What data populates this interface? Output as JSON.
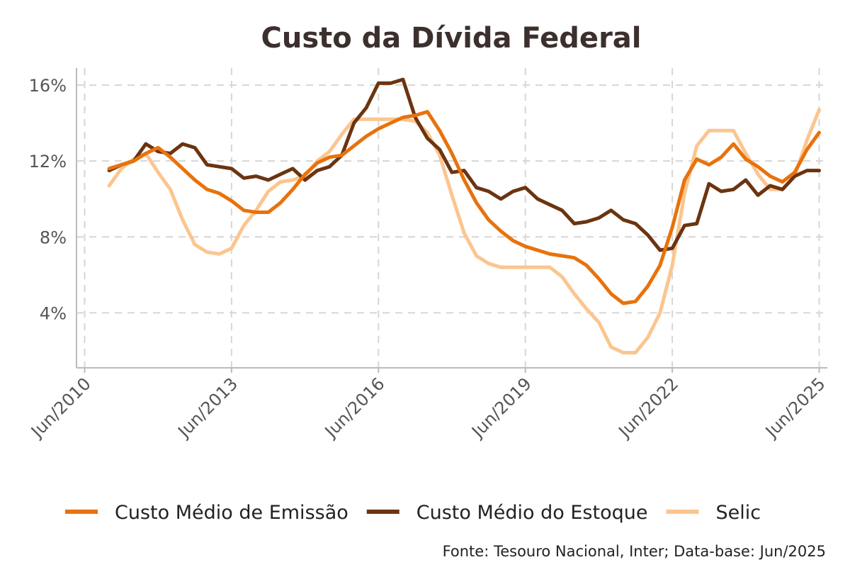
{
  "chart_data": {
    "type": "line",
    "title": "Custo da Dívida Federal",
    "xlabel": "",
    "ylabel": "",
    "x_ticks": [
      "Jun/2010",
      "Jun/2013",
      "Jun/2016",
      "Jun/2019",
      "Jun/2022",
      "Jun/2025"
    ],
    "y_ticks": [
      "4%",
      "8%",
      "12%",
      "16%"
    ],
    "y_tick_values": [
      4,
      8,
      12,
      16
    ],
    "ylim": [
      1.1,
      16.9
    ],
    "xlim": [
      "2010-04",
      "2025-08"
    ],
    "grid": true,
    "legend_position": "bottom",
    "series": [
      {
        "name": "Custo Médio de Emissão",
        "color": "#e8720c",
        "points": [
          [
            "2010-12",
            11.6
          ],
          [
            "2011-03",
            11.8
          ],
          [
            "2011-06",
            12.0
          ],
          [
            "2011-09",
            12.4
          ],
          [
            "2011-12",
            12.7
          ],
          [
            "2012-03",
            12.2
          ],
          [
            "2012-06",
            11.6
          ],
          [
            "2012-09",
            11.0
          ],
          [
            "2012-12",
            10.5
          ],
          [
            "2013-03",
            10.3
          ],
          [
            "2013-06",
            9.9
          ],
          [
            "2013-09",
            9.4
          ],
          [
            "2013-12",
            9.3
          ],
          [
            "2014-03",
            9.3
          ],
          [
            "2014-06",
            9.8
          ],
          [
            "2014-09",
            10.5
          ],
          [
            "2014-12",
            11.3
          ],
          [
            "2015-03",
            11.9
          ],
          [
            "2015-06",
            12.2
          ],
          [
            "2015-09",
            12.3
          ],
          [
            "2015-12",
            12.8
          ],
          [
            "2016-03",
            13.3
          ],
          [
            "2016-06",
            13.7
          ],
          [
            "2016-09",
            14.0
          ],
          [
            "2016-12",
            14.3
          ],
          [
            "2017-03",
            14.4
          ],
          [
            "2017-06",
            14.6
          ],
          [
            "2017-09",
            13.6
          ],
          [
            "2017-12",
            12.4
          ],
          [
            "2018-03",
            11.0
          ],
          [
            "2018-06",
            9.8
          ],
          [
            "2018-09",
            8.9
          ],
          [
            "2018-12",
            8.3
          ],
          [
            "2019-03",
            7.8
          ],
          [
            "2019-06",
            7.5
          ],
          [
            "2019-09",
            7.3
          ],
          [
            "2019-12",
            7.1
          ],
          [
            "2020-03",
            7.0
          ],
          [
            "2020-06",
            6.9
          ],
          [
            "2020-09",
            6.5
          ],
          [
            "2020-12",
            5.8
          ],
          [
            "2021-03",
            5.0
          ],
          [
            "2021-06",
            4.5
          ],
          [
            "2021-09",
            4.6
          ],
          [
            "2021-12",
            5.4
          ],
          [
            "2022-03",
            6.5
          ],
          [
            "2022-06",
            8.5
          ],
          [
            "2022-09",
            11.0
          ],
          [
            "2022-12",
            12.1
          ],
          [
            "2023-03",
            11.8
          ],
          [
            "2023-06",
            12.2
          ],
          [
            "2023-09",
            12.9
          ],
          [
            "2023-12",
            12.1
          ],
          [
            "2024-03",
            11.7
          ],
          [
            "2024-06",
            11.2
          ],
          [
            "2024-09",
            10.9
          ],
          [
            "2024-12",
            11.4
          ],
          [
            "2025-03",
            12.6
          ],
          [
            "2025-06",
            13.5
          ]
        ]
      },
      {
        "name": "Custo Médio do Estoque",
        "color": "#6b3410",
        "points": [
          [
            "2010-12",
            11.5
          ],
          [
            "2011-03",
            11.8
          ],
          [
            "2011-06",
            12.0
          ],
          [
            "2011-09",
            12.9
          ],
          [
            "2011-12",
            12.5
          ],
          [
            "2012-03",
            12.4
          ],
          [
            "2012-06",
            12.9
          ],
          [
            "2012-09",
            12.7
          ],
          [
            "2012-12",
            11.8
          ],
          [
            "2013-03",
            11.7
          ],
          [
            "2013-06",
            11.6
          ],
          [
            "2013-09",
            11.1
          ],
          [
            "2013-12",
            11.2
          ],
          [
            "2014-03",
            11.0
          ],
          [
            "2014-06",
            11.3
          ],
          [
            "2014-09",
            11.6
          ],
          [
            "2014-12",
            11.0
          ],
          [
            "2015-03",
            11.5
          ],
          [
            "2015-06",
            11.7
          ],
          [
            "2015-09",
            12.3
          ],
          [
            "2015-12",
            14.0
          ],
          [
            "2016-03",
            14.8
          ],
          [
            "2016-06",
            16.1
          ],
          [
            "2016-09",
            16.1
          ],
          [
            "2016-12",
            16.3
          ],
          [
            "2017-03",
            14.3
          ],
          [
            "2017-06",
            13.2
          ],
          [
            "2017-09",
            12.6
          ],
          [
            "2017-12",
            11.4
          ],
          [
            "2018-03",
            11.5
          ],
          [
            "2018-06",
            10.6
          ],
          [
            "2018-09",
            10.4
          ],
          [
            "2018-12",
            10.0
          ],
          [
            "2019-03",
            10.4
          ],
          [
            "2019-06",
            10.6
          ],
          [
            "2019-09",
            10.0
          ],
          [
            "2019-12",
            9.7
          ],
          [
            "2020-03",
            9.4
          ],
          [
            "2020-06",
            8.7
          ],
          [
            "2020-09",
            8.8
          ],
          [
            "2020-12",
            9.0
          ],
          [
            "2021-03",
            9.4
          ],
          [
            "2021-06",
            8.9
          ],
          [
            "2021-09",
            8.7
          ],
          [
            "2021-12",
            8.1
          ],
          [
            "2022-03",
            7.3
          ],
          [
            "2022-06",
            7.4
          ],
          [
            "2022-09",
            8.6
          ],
          [
            "2022-12",
            8.7
          ],
          [
            "2023-03",
            10.8
          ],
          [
            "2023-06",
            10.4
          ],
          [
            "2023-09",
            10.5
          ],
          [
            "2023-12",
            11.0
          ],
          [
            "2024-03",
            10.2
          ],
          [
            "2024-06",
            10.7
          ],
          [
            "2024-09",
            10.5
          ],
          [
            "2024-12",
            11.2
          ],
          [
            "2025-03",
            11.5
          ],
          [
            "2025-06",
            11.5
          ]
        ]
      },
      {
        "name": "Selic",
        "color": "#fcc58f",
        "points": [
          [
            "2010-12",
            10.7
          ],
          [
            "2011-03",
            11.6
          ],
          [
            "2011-06",
            12.1
          ],
          [
            "2011-09",
            12.4
          ],
          [
            "2011-12",
            11.4
          ],
          [
            "2012-03",
            10.5
          ],
          [
            "2012-06",
            8.9
          ],
          [
            "2012-09",
            7.6
          ],
          [
            "2012-12",
            7.2
          ],
          [
            "2013-03",
            7.1
          ],
          [
            "2013-06",
            7.4
          ],
          [
            "2013-09",
            8.6
          ],
          [
            "2013-12",
            9.4
          ],
          [
            "2014-03",
            10.4
          ],
          [
            "2014-06",
            10.9
          ],
          [
            "2014-09",
            11.0
          ],
          [
            "2014-12",
            11.2
          ],
          [
            "2015-03",
            12.0
          ],
          [
            "2015-06",
            12.5
          ],
          [
            "2015-09",
            13.4
          ],
          [
            "2015-12",
            14.2
          ],
          [
            "2016-03",
            14.2
          ],
          [
            "2016-06",
            14.2
          ],
          [
            "2016-09",
            14.2
          ],
          [
            "2016-12",
            14.2
          ],
          [
            "2017-03",
            14.1
          ],
          [
            "2017-06",
            13.5
          ],
          [
            "2017-09",
            12.3
          ],
          [
            "2017-12",
            10.2
          ],
          [
            "2018-03",
            8.2
          ],
          [
            "2018-06",
            7.0
          ],
          [
            "2018-09",
            6.6
          ],
          [
            "2018-12",
            6.4
          ],
          [
            "2019-03",
            6.4
          ],
          [
            "2019-06",
            6.4
          ],
          [
            "2019-09",
            6.4
          ],
          [
            "2019-12",
            6.4
          ],
          [
            "2020-03",
            5.9
          ],
          [
            "2020-06",
            5.0
          ],
          [
            "2020-09",
            4.2
          ],
          [
            "2020-12",
            3.5
          ],
          [
            "2021-03",
            2.2
          ],
          [
            "2021-06",
            1.9
          ],
          [
            "2021-09",
            1.9
          ],
          [
            "2021-12",
            2.7
          ],
          [
            "2022-03",
            4.0
          ],
          [
            "2022-06",
            6.5
          ],
          [
            "2022-09",
            10.3
          ],
          [
            "2022-12",
            12.8
          ],
          [
            "2023-03",
            13.6
          ],
          [
            "2023-06",
            13.6
          ],
          [
            "2023-09",
            13.6
          ],
          [
            "2023-12",
            12.4
          ],
          [
            "2024-03",
            11.3
          ],
          [
            "2024-06",
            10.5
          ],
          [
            "2024-09",
            10.5
          ],
          [
            "2024-12",
            11.2
          ],
          [
            "2025-03",
            13.1
          ],
          [
            "2025-06",
            14.7
          ]
        ]
      }
    ],
    "source": "Fonte: Tesouro Nacional, Inter; Data-base: Jun/2025"
  }
}
